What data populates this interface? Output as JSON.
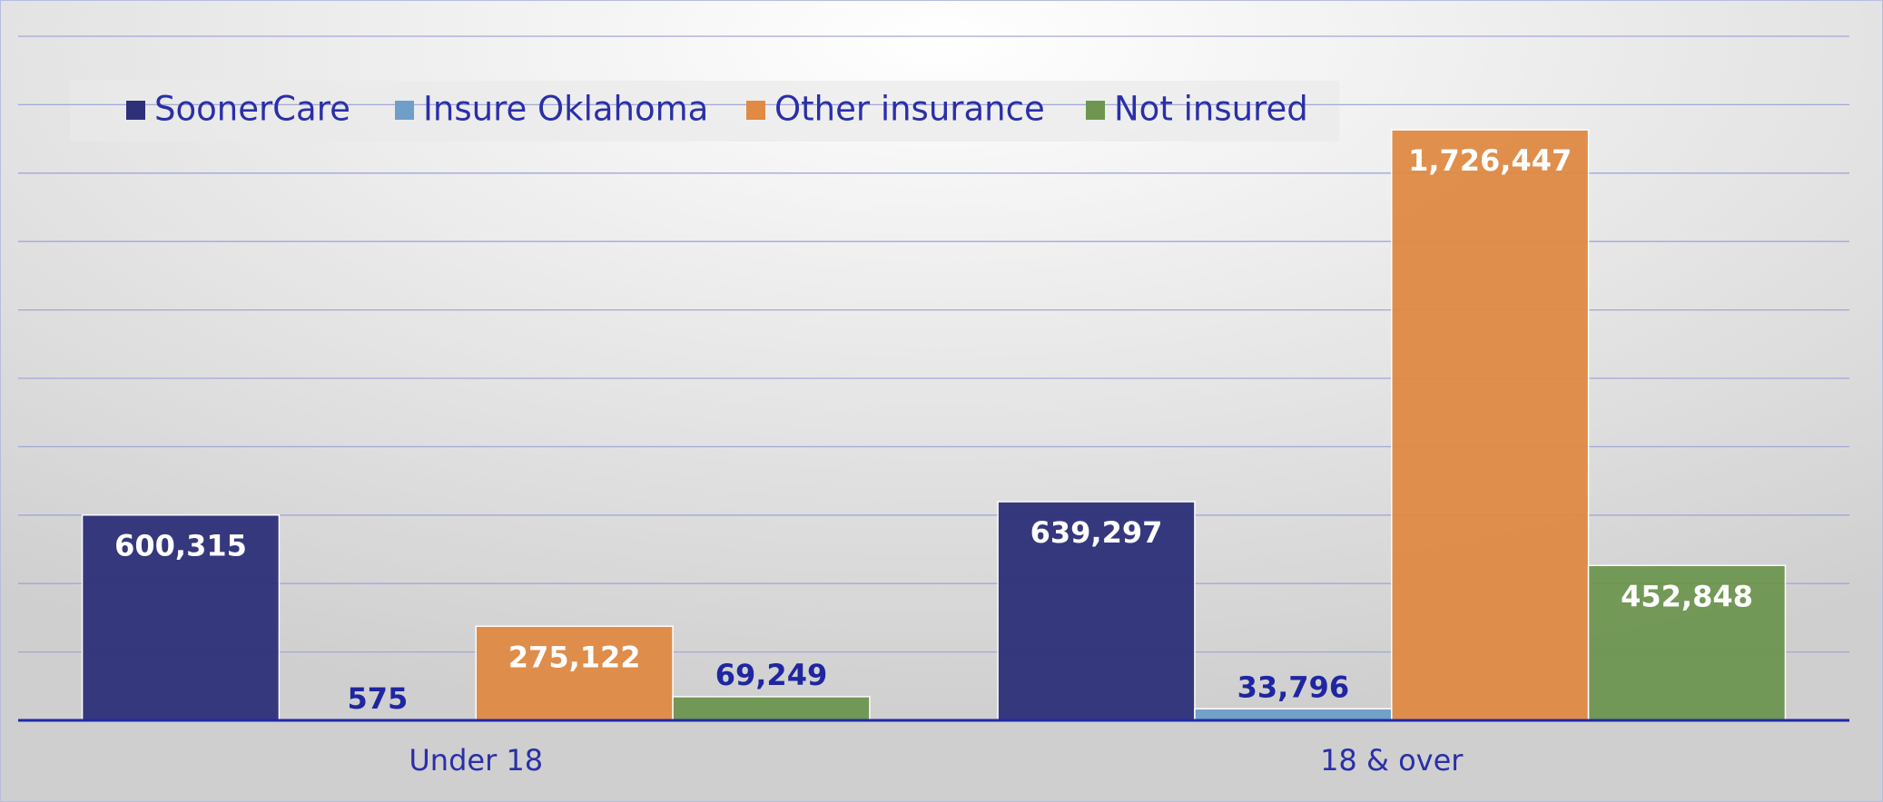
{
  "chart_data": {
    "type": "bar",
    "categories": [
      "Under 18",
      "18 & over"
    ],
    "series": [
      {
        "name": "SoonerCare",
        "color": "#2e3079",
        "values": [
          600315,
          639297
        ],
        "value_labels": [
          "600,315",
          "639,297"
        ]
      },
      {
        "name": "Insure Oklahoma",
        "color": "#6f9fc9",
        "values": [
          575,
          33796
        ],
        "value_labels": [
          "575",
          "33,796"
        ]
      },
      {
        "name": "Other insurance",
        "color": "#e08a44",
        "values": [
          275122,
          1726447
        ],
        "value_labels": [
          "275,122",
          "1,726,447"
        ]
      },
      {
        "name": "Not insured",
        "color": "#6e9651",
        "values": [
          69249,
          452848
        ],
        "value_labels": [
          "69,249",
          "452,848"
        ]
      }
    ],
    "ylim": [
      0,
      2000000
    ],
    "yticks": [
      0,
      200000,
      400000,
      600000,
      800000,
      1000000,
      1200000,
      1400000,
      1600000,
      1800000,
      2000000
    ],
    "grid": true,
    "legend": "top"
  }
}
